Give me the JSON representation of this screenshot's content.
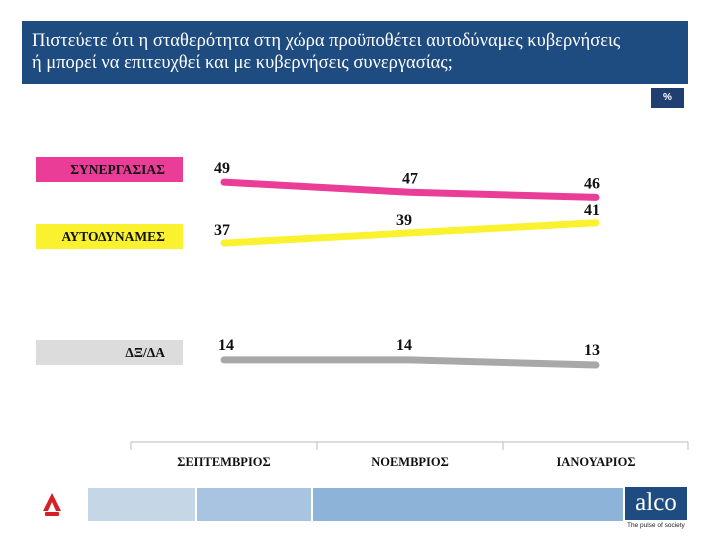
{
  "title": {
    "line1": "Πιστεύετε ότι η σταθερότητα στη χώρα προϋποθέτει αυτοδύναμες κυβερνήσεις",
    "line2": "ή μπορεί να επιτευχθεί και με κυβερνήσεις συνεργασίας;"
  },
  "unit_label": "%",
  "brand": {
    "name": "alco",
    "tagline": "The pulse of society",
    "title_bar_color": "#1e4b80"
  },
  "chart_data": {
    "type": "line",
    "categories": [
      "ΣΕΠΤΕΜΒΡΙΟΣ",
      "ΝΟΕΜΒΡΙΟΣ",
      "ΙΑΝΟΥΑΡΙΟΣ"
    ],
    "series": [
      {
        "name": "ΣΥΝΕΡΓΑΣΙΑΣ",
        "values": [
          49,
          47,
          46
        ],
        "color": "#ea3d97"
      },
      {
        "name": "ΑΥΤΟΔΥΝΑΜΕΣ",
        "values": [
          37,
          39,
          41
        ],
        "color": "#faf22e"
      },
      {
        "name": "ΔΞ/ΔΑ",
        "values": [
          14,
          14,
          13
        ],
        "color": "#a8a8a8"
      }
    ],
    "unit": "%",
    "legend_position": "left",
    "grid": false,
    "data_labels": true
  }
}
